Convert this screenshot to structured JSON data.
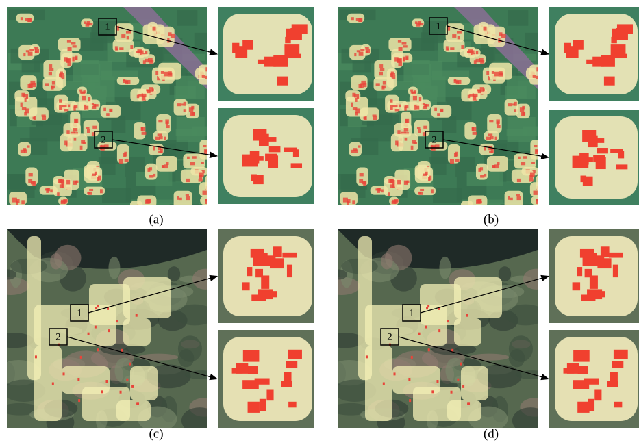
{
  "panels": [
    {
      "caption": "(a)",
      "callouts": [
        "1",
        "2"
      ]
    },
    {
      "caption": "(b)",
      "callouts": [
        "1",
        "2"
      ]
    },
    {
      "caption": "(c)",
      "callouts": [
        "1",
        "2"
      ]
    },
    {
      "caption": "(d)",
      "callouts": [
        "1",
        "2"
      ]
    }
  ]
}
